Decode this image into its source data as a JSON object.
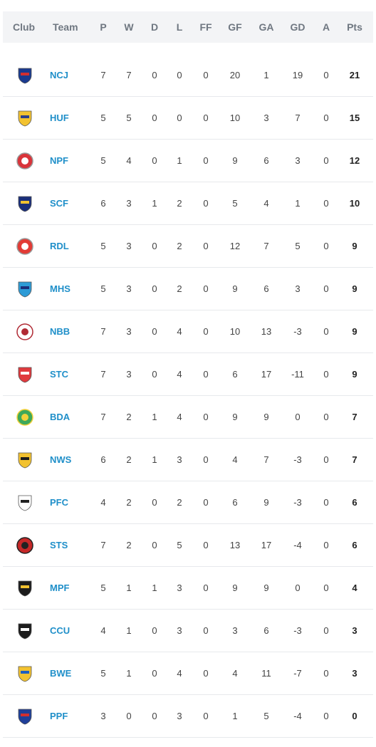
{
  "headers": {
    "club": "Club",
    "team": "Team",
    "p": "P",
    "w": "W",
    "d": "D",
    "l": "L",
    "ff": "FF",
    "gf": "GF",
    "ga": "GA",
    "gd": "GD",
    "a": "A",
    "pts": "Pts"
  },
  "rows": [
    {
      "team": "NCJ",
      "p": "7",
      "w": "7",
      "d": "0",
      "l": "0",
      "ff": "0",
      "gf": "20",
      "ga": "1",
      "gd": "19",
      "a": "0",
      "pts": "21",
      "logo": "crest-shield-icon",
      "color": "#1a3a8f",
      "accent": "#d32f2f"
    },
    {
      "team": "HUF",
      "p": "5",
      "w": "5",
      "d": "0",
      "l": "0",
      "ff": "0",
      "gf": "10",
      "ga": "3",
      "gd": "7",
      "a": "0",
      "pts": "15",
      "logo": "crest-shield-icon",
      "color": "#f2c230",
      "accent": "#2b3f8c"
    },
    {
      "team": "NPF",
      "p": "5",
      "w": "4",
      "d": "0",
      "l": "1",
      "ff": "0",
      "gf": "9",
      "ga": "6",
      "gd": "3",
      "a": "0",
      "pts": "12",
      "logo": "crest-circle-icon",
      "color": "#d9343a",
      "accent": "#ffffff"
    },
    {
      "team": "SCF",
      "p": "6",
      "w": "3",
      "d": "1",
      "l": "2",
      "ff": "0",
      "gf": "5",
      "ga": "4",
      "gd": "1",
      "a": "0",
      "pts": "10",
      "logo": "crest-shield-icon",
      "color": "#1b2f7a",
      "accent": "#f2c230"
    },
    {
      "team": "RDL",
      "p": "5",
      "w": "3",
      "d": "0",
      "l": "2",
      "ff": "0",
      "gf": "12",
      "ga": "7",
      "gd": "5",
      "a": "0",
      "pts": "9",
      "logo": "crest-circle-icon",
      "color": "#e23b35",
      "accent": "#ffffff"
    },
    {
      "team": "MHS",
      "p": "5",
      "w": "3",
      "d": "0",
      "l": "2",
      "ff": "0",
      "gf": "9",
      "ga": "6",
      "gd": "3",
      "a": "0",
      "pts": "9",
      "logo": "crest-shield-icon",
      "color": "#2d9bd6",
      "accent": "#1b2f7a"
    },
    {
      "team": "NBB",
      "p": "7",
      "w": "3",
      "d": "0",
      "l": "4",
      "ff": "0",
      "gf": "10",
      "ga": "13",
      "gd": "-3",
      "a": "0",
      "pts": "9",
      "logo": "crest-circle-icon",
      "color": "#ffffff",
      "accent": "#b02a34"
    },
    {
      "team": "STC",
      "p": "7",
      "w": "3",
      "d": "0",
      "l": "4",
      "ff": "0",
      "gf": "6",
      "ga": "17",
      "gd": "-11",
      "a": "0",
      "pts": "9",
      "logo": "crest-shield-icon",
      "color": "#e03a3e",
      "accent": "#ffffff"
    },
    {
      "team": "BDA",
      "p": "7",
      "w": "2",
      "d": "1",
      "l": "4",
      "ff": "0",
      "gf": "9",
      "ga": "9",
      "gd": "0",
      "a": "0",
      "pts": "7",
      "logo": "crest-circle-icon",
      "color": "#3ea85a",
      "accent": "#f2d13a"
    },
    {
      "team": "NWS",
      "p": "6",
      "w": "2",
      "d": "1",
      "l": "3",
      "ff": "0",
      "gf": "4",
      "ga": "7",
      "gd": "-3",
      "a": "0",
      "pts": "7",
      "logo": "crest-shield-icon",
      "color": "#f2c230",
      "accent": "#1c1c1c"
    },
    {
      "team": "PFC",
      "p": "4",
      "w": "2",
      "d": "0",
      "l": "2",
      "ff": "0",
      "gf": "6",
      "ga": "9",
      "gd": "-3",
      "a": "0",
      "pts": "6",
      "logo": "crest-shield-icon",
      "color": "#ffffff",
      "accent": "#222222"
    },
    {
      "team": "STS",
      "p": "7",
      "w": "2",
      "d": "0",
      "l": "5",
      "ff": "0",
      "gf": "13",
      "ga": "17",
      "gd": "-4",
      "a": "0",
      "pts": "6",
      "logo": "crest-circle-icon",
      "color": "#c62828",
      "accent": "#222222"
    },
    {
      "team": "MPF",
      "p": "5",
      "w": "1",
      "d": "1",
      "l": "3",
      "ff": "0",
      "gf": "9",
      "ga": "9",
      "gd": "0",
      "a": "0",
      "pts": "4",
      "logo": "crest-shield-icon",
      "color": "#1c1c1c",
      "accent": "#f2c230"
    },
    {
      "team": "CCU",
      "p": "4",
      "w": "1",
      "d": "0",
      "l": "3",
      "ff": "0",
      "gf": "3",
      "ga": "6",
      "gd": "-3",
      "a": "0",
      "pts": "3",
      "logo": "crest-shield-icon",
      "color": "#1c1c1c",
      "accent": "#ffffff"
    },
    {
      "team": "BWE",
      "p": "5",
      "w": "1",
      "d": "0",
      "l": "4",
      "ff": "0",
      "gf": "4",
      "ga": "11",
      "gd": "-7",
      "a": "0",
      "pts": "3",
      "logo": "crest-shield-icon",
      "color": "#f2c230",
      "accent": "#1f5fbf"
    },
    {
      "team": "PPF",
      "p": "3",
      "w": "0",
      "d": "0",
      "l": "3",
      "ff": "0",
      "gf": "1",
      "ga": "5",
      "gd": "-4",
      "a": "0",
      "pts": "0",
      "logo": "crest-shield-icon",
      "color": "#1f3f99",
      "accent": "#d32f2f"
    }
  ]
}
